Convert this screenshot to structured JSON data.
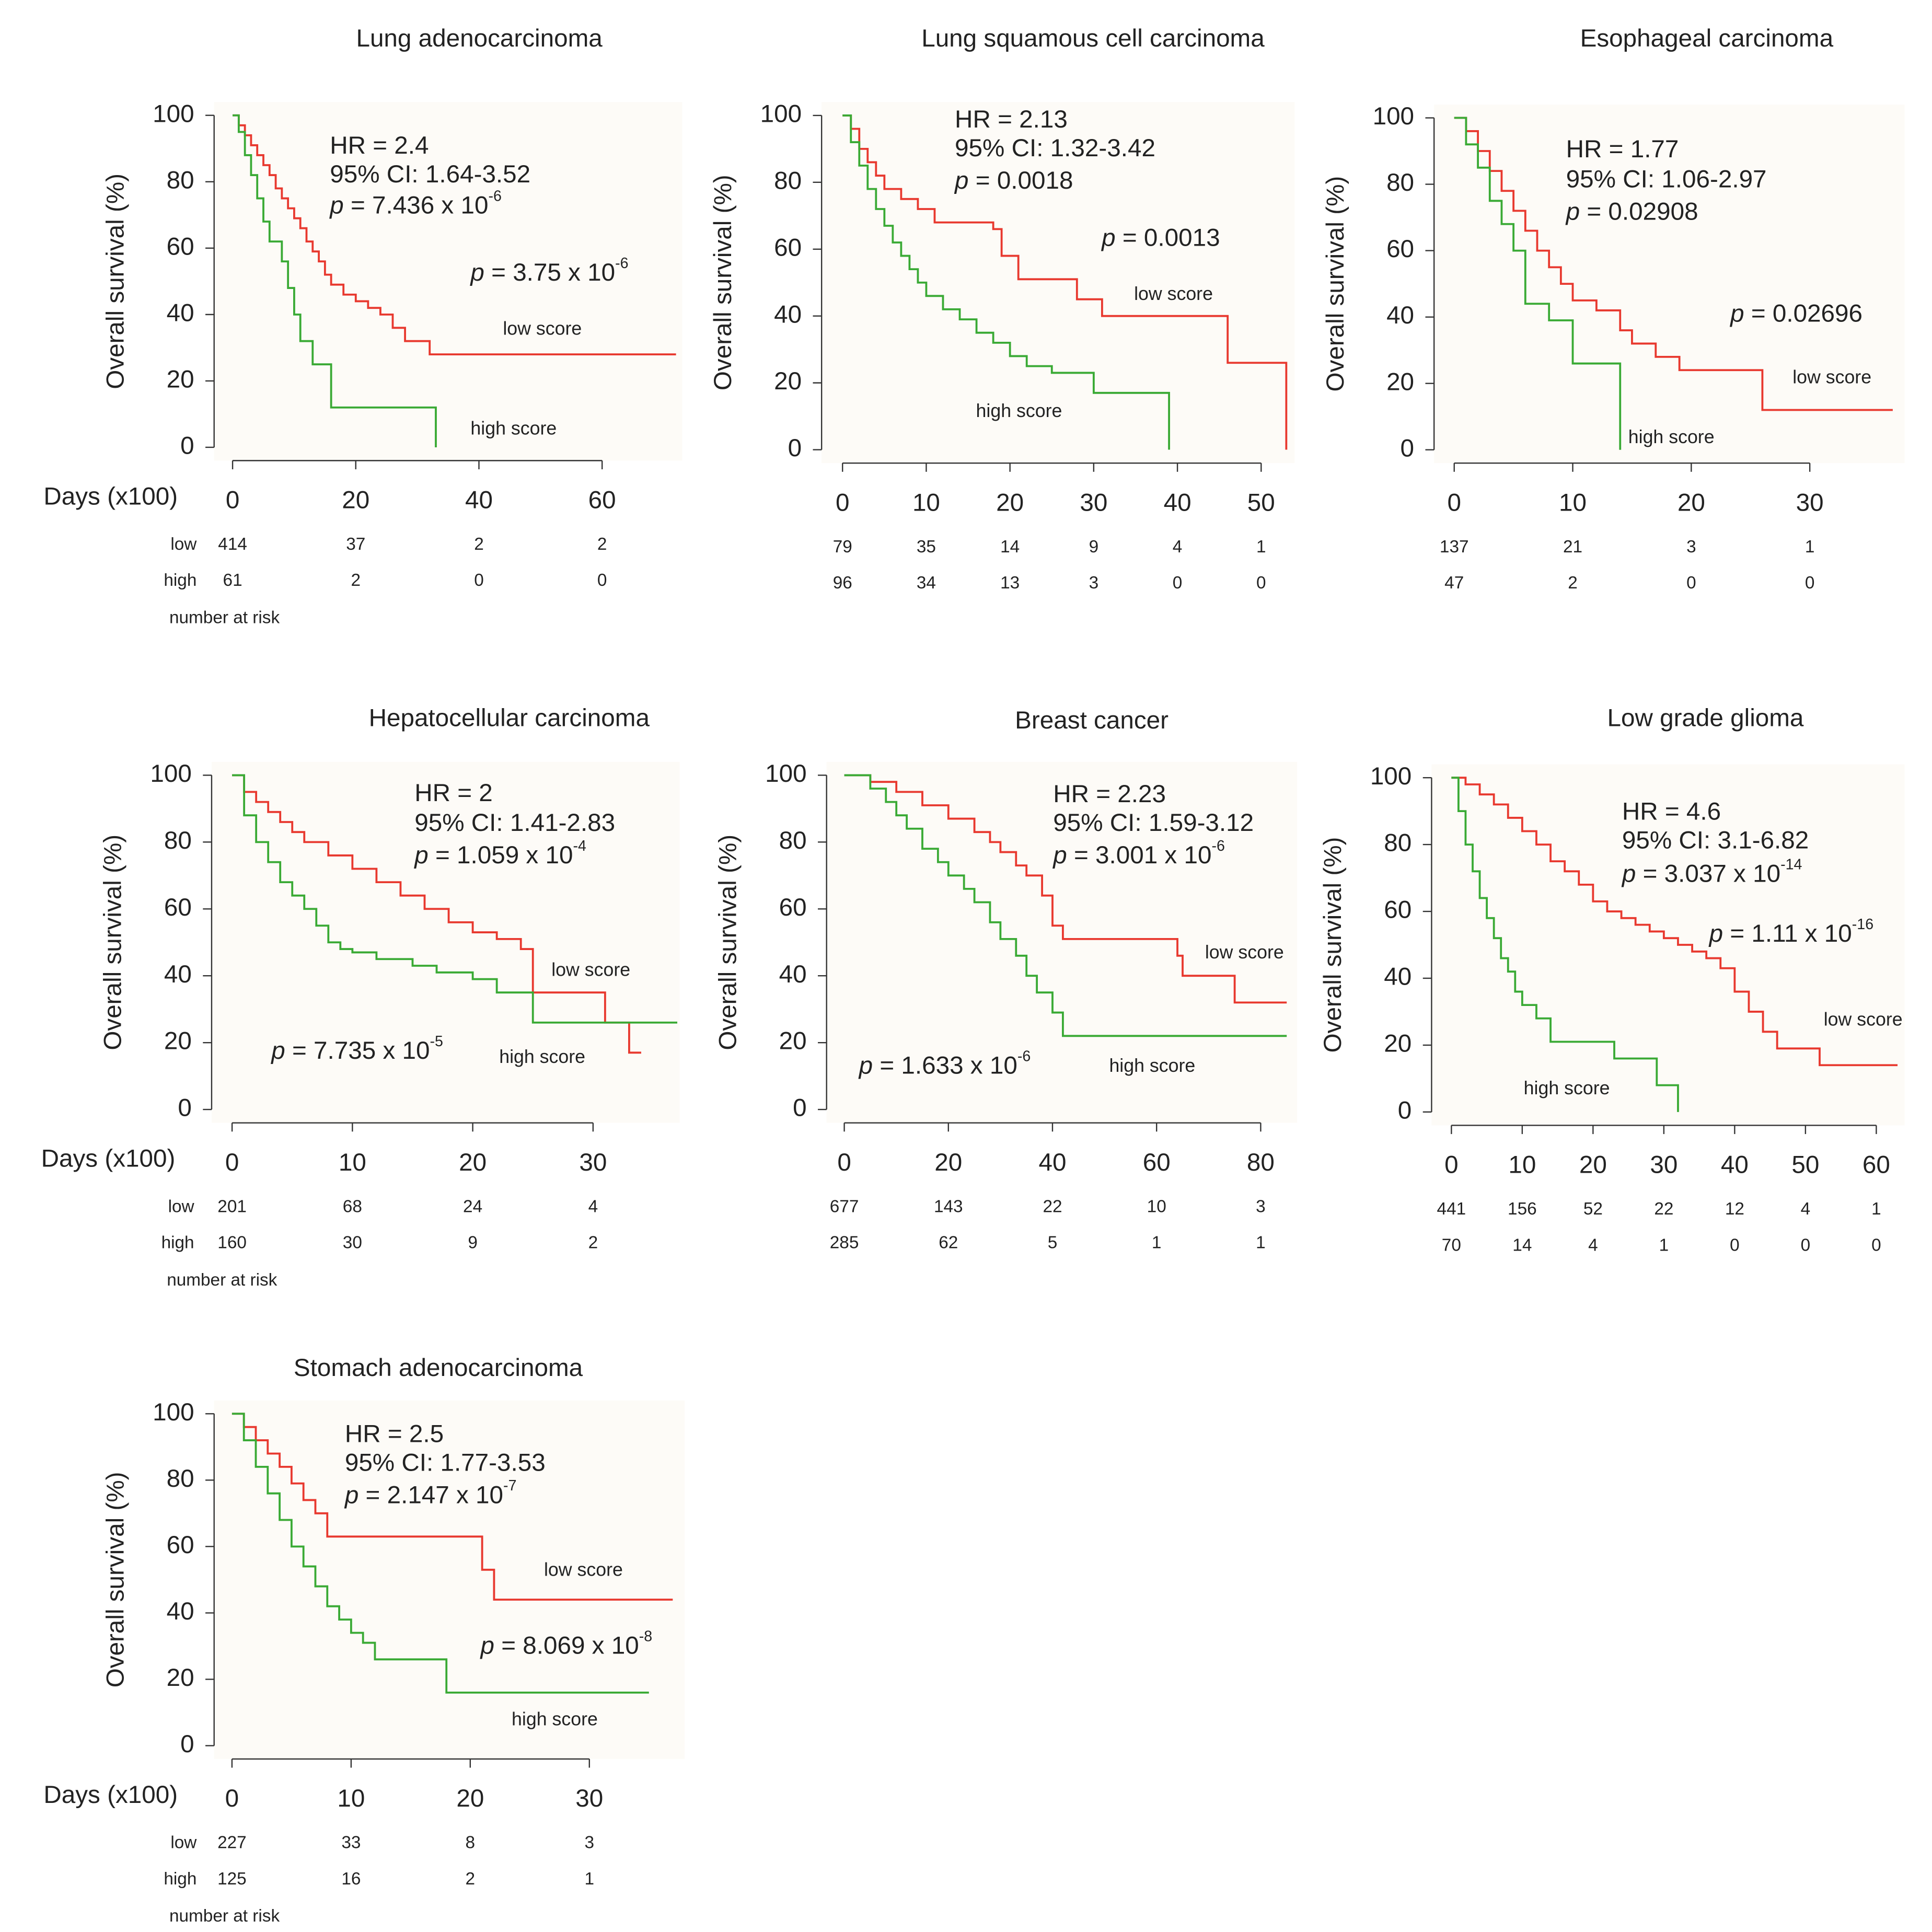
{
  "chart_data": [
    {
      "type": "line",
      "step": "post",
      "title": "Lung adenocarcinoma",
      "ylabel": "Overall survival (%)",
      "xlabel": "Days (x100)",
      "xlim": [
        -3,
        73
      ],
      "ylim": [
        -4,
        104
      ],
      "xticks": [
        0,
        20,
        40,
        60
      ],
      "yticks": [
        0,
        20,
        40,
        60,
        80,
        100
      ],
      "series": [
        {
          "name": "low score",
          "color": "#e8392f",
          "x": [
            0,
            1,
            2,
            3,
            4,
            5,
            6,
            7,
            8,
            9,
            10,
            11,
            12,
            13,
            14,
            15,
            16,
            18,
            20,
            22,
            24,
            26,
            28,
            32,
            72
          ],
          "values": [
            100,
            97,
            94,
            91,
            88,
            85,
            82,
            78,
            75,
            72,
            69,
            66,
            62,
            59,
            56,
            52,
            49,
            46,
            44,
            42,
            40,
            36,
            32,
            28,
            28
          ]
        },
        {
          "name": "high score",
          "color": "#3aaa35",
          "x": [
            0,
            1,
            2,
            3,
            4,
            5,
            6,
            8,
            9,
            10,
            11,
            13,
            16,
            33,
            33
          ],
          "values": [
            100,
            95,
            88,
            82,
            75,
            68,
            62,
            56,
            48,
            40,
            32,
            25,
            12,
            12,
            0
          ]
        }
      ],
      "annotations": [
        {
          "text": "HR = 2.4"
        },
        {
          "text": "95% CI: 1.64-3.52"
        },
        {
          "italic": "p",
          "text": " = 7.436 x 10",
          "sup": "-6"
        },
        {
          "italic": "p",
          "text": " = 3.75 x 10",
          "sup": "-6"
        }
      ],
      "risk_table": {
        "title": "number at risk",
        "rows": [
          {
            "label": "low",
            "values": [
              414,
              37,
              2,
              2
            ]
          },
          {
            "label": "high",
            "values": [
              61,
              2,
              0,
              0
            ]
          }
        ]
      }
    },
    {
      "type": "line",
      "step": "post",
      "title": "Lung squamous cell carcinoma",
      "ylabel": "Overall survival (%)",
      "xlim": [
        -2.5,
        54
      ],
      "ylim": [
        -4,
        104
      ],
      "xticks": [
        0,
        10,
        20,
        30,
        40,
        50
      ],
      "yticks": [
        0,
        20,
        40,
        60,
        80,
        100
      ],
      "series": [
        {
          "name": "low score",
          "color": "#e8392f",
          "x": [
            0,
            1,
            2,
            3,
            4,
            5,
            7,
            9,
            11,
            18,
            19,
            21,
            28,
            31,
            46,
            53,
            53
          ],
          "values": [
            100,
            96,
            90,
            86,
            82,
            78,
            75,
            72,
            68,
            66,
            58,
            51,
            45,
            40,
            26,
            26,
            0
          ]
        },
        {
          "name": "high score",
          "color": "#3aaa35",
          "x": [
            0,
            1,
            2,
            3,
            4,
            5,
            6,
            7,
            8,
            9,
            10,
            12,
            14,
            16,
            18,
            20,
            22,
            25,
            30,
            39,
            39
          ],
          "values": [
            100,
            92,
            85,
            78,
            72,
            67,
            62,
            58,
            54,
            50,
            46,
            42,
            39,
            35,
            32,
            28,
            25,
            23,
            17,
            17,
            0
          ]
        }
      ],
      "annotations": [
        {
          "text": "HR = 2.13"
        },
        {
          "text": "95% CI: 1.32-3.42"
        },
        {
          "italic": "p",
          "text": " = 0.0018"
        },
        {
          "italic": "p",
          "text": " = 0.0013"
        }
      ],
      "risk_table": {
        "rows": [
          {
            "values": [
              79,
              35,
              14,
              9,
              4,
              1
            ]
          },
          {
            "values": [
              96,
              34,
              13,
              3,
              0,
              0
            ]
          }
        ]
      }
    },
    {
      "type": "line",
      "step": "post",
      "title": "Esophageal carcinoma",
      "ylabel": "Overall survival (%)",
      "xlim": [
        -1.7,
        38
      ],
      "ylim": [
        -4,
        104
      ],
      "xticks": [
        0,
        10,
        20,
        30
      ],
      "yticks": [
        0,
        20,
        40,
        60,
        80,
        100
      ],
      "series": [
        {
          "name": "low score",
          "color": "#e8392f",
          "x": [
            0,
            1,
            2,
            3,
            4,
            5,
            6,
            7,
            8,
            9,
            10,
            12,
            14,
            15,
            17,
            19,
            26,
            37
          ],
          "values": [
            100,
            96,
            90,
            84,
            78,
            72,
            66,
            60,
            55,
            50,
            45,
            42,
            36,
            32,
            28,
            24,
            12,
            12
          ]
        },
        {
          "name": "high score",
          "color": "#3aaa35",
          "x": [
            0,
            1,
            2,
            3,
            4,
            5,
            6,
            8,
            10,
            14,
            14
          ],
          "values": [
            100,
            92,
            85,
            75,
            68,
            60,
            44,
            39,
            26,
            26,
            0
          ]
        }
      ],
      "annotations": [
        {
          "text": "HR = 1.77"
        },
        {
          "text": "95% CI: 1.06-2.97"
        },
        {
          "italic": "p",
          "text": " = 0.02908"
        },
        {
          "italic": "p",
          "text": " = 0.02696"
        }
      ],
      "risk_table": {
        "rows": [
          {
            "values": [
              137,
              21,
              3,
              1
            ]
          },
          {
            "values": [
              47,
              2,
              0,
              0
            ]
          }
        ]
      }
    },
    {
      "type": "line",
      "step": "post",
      "title": "Hepatocellular carcinoma",
      "ylabel": "Overall survival (%)",
      "xlabel": "Days (x100)",
      "xlim": [
        -1.7,
        37.2
      ],
      "ylim": [
        -4,
        104
      ],
      "xticks": [
        0,
        10,
        20,
        30
      ],
      "yticks": [
        0,
        20,
        40,
        60,
        80,
        100
      ],
      "series": [
        {
          "name": "low score",
          "color": "#e8392f",
          "x": [
            0,
            1,
            2,
            3,
            4,
            5,
            6,
            8,
            10,
            12,
            14,
            16,
            18,
            20,
            22,
            24,
            25,
            31,
            33,
            34
          ],
          "values": [
            100,
            95,
            92,
            89,
            86,
            83,
            80,
            76,
            72,
            68,
            64,
            60,
            56,
            53,
            51,
            48,
            35,
            26,
            17,
            17
          ]
        },
        {
          "name": "high score",
          "color": "#3aaa35",
          "x": [
            0,
            1,
            2,
            3,
            4,
            5,
            6,
            7,
            8,
            9,
            10,
            12,
            15,
            17,
            20,
            22,
            25,
            37
          ],
          "values": [
            100,
            88,
            80,
            74,
            68,
            64,
            60,
            55,
            50,
            48,
            47,
            45,
            43,
            41,
            39,
            35,
            26,
            26
          ]
        }
      ],
      "annotations": [
        {
          "text": "HR = 2"
        },
        {
          "text": "95% CI: 1.41-2.83"
        },
        {
          "italic": "p",
          "text": " = 1.059 x 10",
          "sup": "-4"
        },
        {
          "italic": "p",
          "text": " = 7.735 x 10",
          "sup": "-5"
        }
      ],
      "risk_table": {
        "title": "number at risk",
        "rows": [
          {
            "label": "low",
            "values": [
              201,
              68,
              24,
              4
            ]
          },
          {
            "label": "high",
            "values": [
              160,
              30,
              9,
              2
            ]
          }
        ]
      }
    },
    {
      "type": "line",
      "step": "post",
      "title": "Breast cancer",
      "ylabel": "Overall survival (%)",
      "xlim": [
        -3.4,
        87
      ],
      "ylim": [
        -4,
        104
      ],
      "xticks": [
        0,
        20,
        40,
        60,
        80
      ],
      "yticks": [
        0,
        20,
        40,
        60,
        80,
        100
      ],
      "series": [
        {
          "name": "low score",
          "color": "#e8392f",
          "x": [
            0,
            5,
            10,
            15,
            20,
            25,
            28,
            30,
            33,
            35,
            38,
            40,
            42,
            50,
            64,
            65,
            75,
            85
          ],
          "values": [
            100,
            98,
            95,
            91,
            87,
            83,
            80,
            77,
            73,
            70,
            64,
            55,
            51,
            51,
            46,
            40,
            32,
            32
          ]
        },
        {
          "name": "high score",
          "color": "#3aaa35",
          "x": [
            0,
            5,
            8,
            10,
            12,
            15,
            18,
            20,
            23,
            25,
            28,
            30,
            33,
            35,
            37,
            40,
            42,
            85
          ],
          "values": [
            100,
            96,
            92,
            88,
            84,
            78,
            74,
            70,
            66,
            62,
            56,
            51,
            46,
            40,
            35,
            29,
            22,
            22
          ]
        }
      ],
      "annotations": [
        {
          "text": "HR = 2.23"
        },
        {
          "text": "95% CI: 1.59-3.12"
        },
        {
          "italic": "p",
          "text": " = 3.001 x 10",
          "sup": "-6"
        },
        {
          "italic": "p",
          "text": " = 1.633 x 10",
          "sup": "-6"
        }
      ],
      "risk_table": {
        "rows": [
          {
            "values": [
              677,
              143,
              22,
              10,
              3
            ]
          },
          {
            "values": [
              285,
              62,
              5,
              1,
              1
            ]
          }
        ]
      }
    },
    {
      "type": "line",
      "step": "post",
      "title": "Low grade glioma",
      "ylabel": "Overall survival (%)",
      "xlim": [
        -2.8,
        64
      ],
      "ylim": [
        -4,
        104
      ],
      "xticks": [
        0,
        10,
        20,
        30,
        40,
        50,
        60
      ],
      "yticks": [
        0,
        20,
        40,
        60,
        80,
        100
      ],
      "series": [
        {
          "name": "low score",
          "color": "#e8392f",
          "x": [
            0,
            2,
            4,
            6,
            8,
            10,
            12,
            14,
            16,
            18,
            20,
            22,
            24,
            26,
            28,
            30,
            32,
            34,
            36,
            38,
            40,
            42,
            44,
            46,
            52,
            63
          ],
          "values": [
            100,
            98,
            95,
            92,
            88,
            84,
            80,
            75,
            72,
            68,
            63,
            60,
            58,
            56,
            54,
            52,
            50,
            48,
            46,
            43,
            36,
            30,
            24,
            19,
            14,
            14
          ]
        },
        {
          "name": "high score",
          "color": "#3aaa35",
          "x": [
            0,
            1,
            2,
            3,
            4,
            5,
            6,
            7,
            8,
            9,
            10,
            12,
            14,
            17,
            23,
            29,
            32,
            32
          ],
          "values": [
            100,
            90,
            80,
            72,
            64,
            58,
            52,
            46,
            42,
            36,
            32,
            28,
            21,
            21,
            16,
            8,
            8,
            0
          ]
        }
      ],
      "annotations": [
        {
          "text": "HR = 4.6"
        },
        {
          "text": "95% CI: 3.1-6.82"
        },
        {
          "italic": "p",
          "text": " = 3.037 x 10",
          "sup": "-14"
        },
        {
          "italic": "p",
          "text": " = 1.11 x 10",
          "sup": "-16"
        }
      ],
      "risk_table": {
        "rows": [
          {
            "values": [
              441,
              156,
              52,
              22,
              12,
              4,
              1
            ]
          },
          {
            "values": [
              70,
              14,
              4,
              1,
              0,
              0,
              0
            ]
          }
        ]
      }
    },
    {
      "type": "line",
      "step": "post",
      "title": "Stomach adenocarcinoma",
      "ylabel": "Overall survival (%)",
      "xlabel": "Days (x100)",
      "xlim": [
        -1.5,
        38
      ],
      "ylim": [
        -4,
        104
      ],
      "xticks": [
        0,
        10,
        20,
        30
      ],
      "yticks": [
        0,
        20,
        40,
        60,
        80,
        100
      ],
      "series": [
        {
          "name": "low score",
          "color": "#e8392f",
          "x": [
            0,
            1,
            2,
            3,
            4,
            5,
            6,
            7,
            8,
            21,
            22,
            37
          ],
          "values": [
            100,
            96,
            92,
            88,
            84,
            79,
            74,
            70,
            63,
            53,
            44,
            44
          ]
        },
        {
          "name": "high score",
          "color": "#3aaa35",
          "x": [
            0,
            1,
            2,
            3,
            4,
            5,
            6,
            7,
            8,
            9,
            10,
            11,
            12,
            18,
            35
          ],
          "values": [
            100,
            92,
            84,
            76,
            68,
            60,
            54,
            48,
            42,
            38,
            34,
            31,
            26,
            16,
            16
          ]
        }
      ],
      "annotations": [
        {
          "text": "HR = 2.5"
        },
        {
          "text": "95% CI: 1.77-3.53"
        },
        {
          "italic": "p",
          "text": " = 2.147 x 10",
          "sup": "-7"
        },
        {
          "italic": "p",
          "text": " = 8.069 x 10",
          "sup": "-8"
        }
      ],
      "risk_table": {
        "title": "number at risk",
        "rows": [
          {
            "label": "low",
            "values": [
              227,
              33,
              8,
              3
            ]
          },
          {
            "label": "high",
            "values": [
              125,
              16,
              2,
              1
            ]
          }
        ]
      }
    }
  ]
}
